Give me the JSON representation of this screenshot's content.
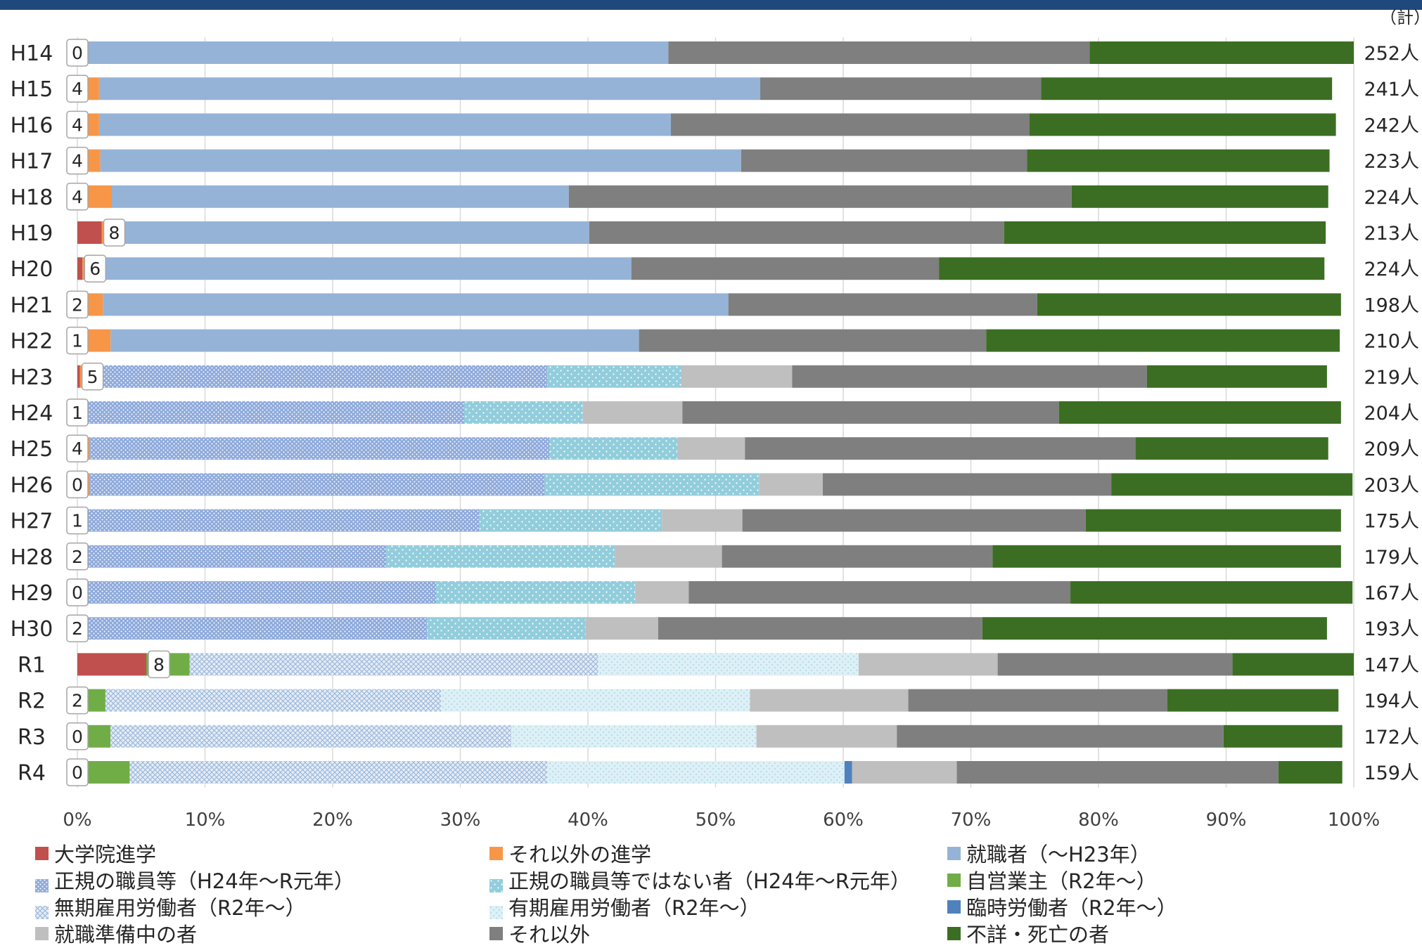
{
  "chart_data": {
    "type": "bar",
    "orientation": "horizontal",
    "stacked": "percent",
    "unit_label": "（計）",
    "categories": [
      "H14",
      "H15",
      "H16",
      "H17",
      "H18",
      "H19",
      "H20",
      "H21",
      "H22",
      "H23",
      "H24",
      "H25",
      "H26",
      "H27",
      "H28",
      "H29",
      "H30",
      "R1",
      "R2",
      "R3",
      "R4"
    ],
    "totals": [
      "252人",
      "241人",
      "242人",
      "223人",
      "224人",
      "213人",
      "224人",
      "198人",
      "210人",
      "219人",
      "204人",
      "209人",
      "203人",
      "175人",
      "179人",
      "167人",
      "193人",
      "147人",
      "194人",
      "172人",
      "159人"
    ],
    "counts": [
      "0",
      "4",
      "4",
      "4",
      "4",
      "8",
      "6",
      "2",
      "1",
      "5",
      "1",
      "4",
      "0",
      "1",
      "2",
      "0",
      "2",
      "8",
      "2",
      "0",
      "0"
    ],
    "xticks": [
      "0%",
      "10%",
      "20%",
      "30%",
      "40%",
      "50%",
      "60%",
      "70%",
      "80%",
      "90%",
      "100%"
    ],
    "xlim": [
      0,
      100
    ],
    "series": [
      {
        "name": "大学院進学",
        "color": "#C0504D",
        "pattern": "solid",
        "values": [
          0,
          0,
          0,
          0,
          0,
          1.9,
          0.4,
          0,
          0,
          0.2,
          0,
          0,
          0,
          0,
          0,
          0,
          0,
          5.4,
          0,
          0,
          0
        ]
      },
      {
        "name": "それ以外の進学",
        "color": "#F79646",
        "pattern": "solid",
        "values": [
          0,
          1.7,
          1.7,
          1.8,
          2.7,
          0.9,
          1.4,
          2.0,
          2.6,
          1.8,
          0.3,
          1.0,
          1.0,
          0,
          0.2,
          0,
          0.7,
          0,
          0.7,
          0,
          0
        ]
      },
      {
        "name": "就職者（～H23年）",
        "color": "#95B3D7",
        "pattern": "solid",
        "values": [
          46.3,
          51.8,
          44.8,
          50.2,
          35.8,
          37.3,
          41.6,
          49.0,
          41.4,
          0,
          0,
          0,
          0,
          0,
          0,
          0,
          0,
          0,
          0,
          0,
          0
        ]
      },
      {
        "name": "正規の職員等（H24年～R元年）",
        "color": "#95B3D7",
        "pattern": "dots-blue",
        "values": [
          0,
          0,
          0,
          0,
          0,
          0,
          0,
          0,
          0,
          34.8,
          30.0,
          36.0,
          35.6,
          31.5,
          24.0,
          28.1,
          26.7,
          0,
          0,
          0,
          0
        ]
      },
      {
        "name": "正規の職員等ではない者（H24年～R元年）",
        "color": "#92CDDC",
        "pattern": "dots-teal",
        "values": [
          0,
          0,
          0,
          0,
          0,
          0,
          0,
          0,
          0,
          10.5,
          9.3,
          10.0,
          16.8,
          14.3,
          17.9,
          15.6,
          12.4,
          0,
          0,
          0,
          0
        ]
      },
      {
        "name": "自営業主（R2年～）",
        "color": "#70AD47",
        "pattern": "solid",
        "values": [
          0,
          0,
          0,
          0,
          0,
          0,
          0,
          0,
          0,
          0,
          0,
          0,
          0,
          0,
          0,
          0,
          0,
          3.4,
          1.5,
          2.6,
          4.1
        ]
      },
      {
        "name": "無期雇用労働者（R2年～）",
        "color": "#DCE6F2",
        "pattern": "hatch-blue",
        "values": [
          0,
          0,
          0,
          0,
          0,
          0,
          0,
          0,
          0,
          0,
          0,
          0,
          0,
          0,
          0,
          0,
          0,
          32.0,
          26.3,
          31.4,
          32.7
        ]
      },
      {
        "name": "有期雇用労働者（R2年～）",
        "color": "#DAEEF3",
        "pattern": "dots-light",
        "values": [
          0,
          0,
          0,
          0,
          0,
          0,
          0,
          0,
          0,
          0,
          0,
          0,
          0,
          0,
          0,
          0,
          0,
          20.4,
          24.2,
          19.2,
          23.3
        ]
      },
      {
        "name": "臨時労働者（R2年～）",
        "color": "#4F81BD",
        "pattern": "solid",
        "values": [
          0,
          0,
          0,
          0,
          0,
          0,
          0,
          0,
          0,
          0,
          0,
          0,
          0,
          0,
          0,
          0,
          0,
          0,
          0,
          0,
          0.6
        ]
      },
      {
        "name": "就職準備中の者",
        "color": "#BFBFBF",
        "pattern": "solid",
        "values": [
          0,
          0,
          0,
          0,
          0,
          0,
          0,
          0,
          0,
          8.7,
          7.8,
          5.3,
          5.0,
          6.3,
          8.4,
          4.2,
          5.7,
          10.9,
          12.4,
          11.0,
          8.2
        ]
      },
      {
        "name": "それ以外",
        "color": "#7F7F7F",
        "pattern": "solid",
        "values": [
          33.0,
          22.0,
          28.1,
          22.4,
          39.4,
          32.5,
          24.1,
          24.2,
          27.2,
          27.8,
          29.5,
          30.6,
          22.6,
          26.9,
          21.2,
          29.9,
          25.4,
          18.4,
          20.3,
          25.6,
          25.2
        ]
      },
      {
        "name": "不詳・死亡の者",
        "color": "#3B6E22",
        "pattern": "solid",
        "values": [
          20.7,
          22.8,
          24.0,
          23.7,
          20.1,
          25.2,
          30.2,
          23.8,
          27.7,
          14.1,
          22.1,
          15.1,
          18.9,
          20.0,
          27.3,
          22.1,
          27.0,
          9.5,
          13.4,
          9.3,
          5.0
        ]
      }
    ]
  }
}
